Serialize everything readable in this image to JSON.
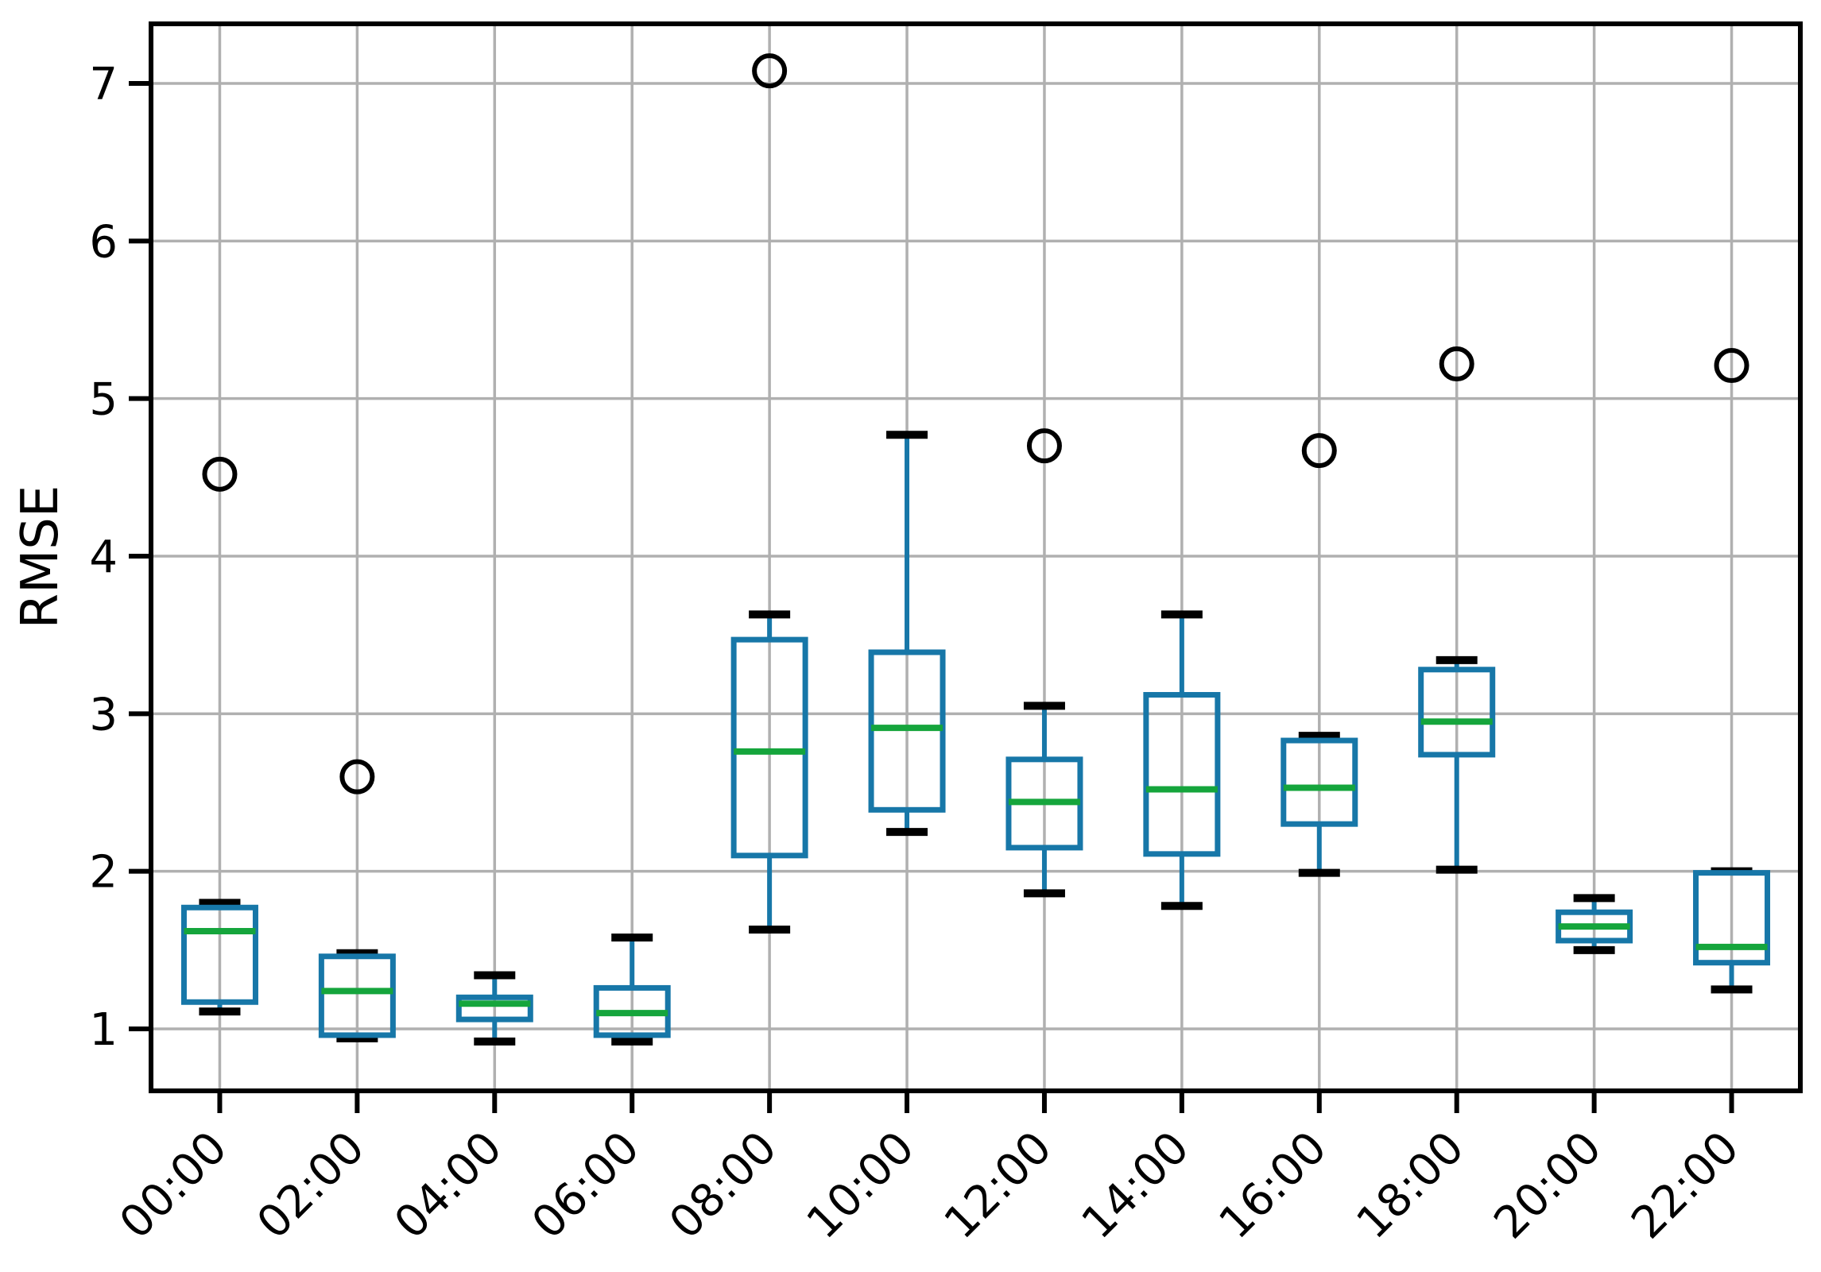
{
  "chart_data": {
    "type": "box",
    "title": "",
    "ylabel": "RMSE",
    "xlabel": "",
    "grid": true,
    "legend": "none",
    "ylim": [
      0.61,
      7.37
    ],
    "yticks": [
      1,
      2,
      3,
      4,
      5,
      6,
      7
    ],
    "categories": [
      "00:00",
      "02:00",
      "04:00",
      "06:00",
      "08:00",
      "10:00",
      "12:00",
      "14:00",
      "16:00",
      "18:00",
      "20:00",
      "22:00"
    ],
    "series": [
      {
        "label": "00:00",
        "whislo": 1.11,
        "q1": 1.17,
        "med": 1.62,
        "q3": 1.77,
        "whishi": 1.8,
        "fliers": [
          4.52
        ]
      },
      {
        "label": "02:00",
        "whislo": 0.94,
        "q1": 0.96,
        "med": 1.24,
        "q3": 1.46,
        "whishi": 1.48,
        "fliers": [
          2.6
        ]
      },
      {
        "label": "04:00",
        "whislo": 0.92,
        "q1": 1.06,
        "med": 1.16,
        "q3": 1.2,
        "whishi": 1.34,
        "fliers": []
      },
      {
        "label": "06:00",
        "whislo": 0.92,
        "q1": 0.96,
        "med": 1.1,
        "q3": 1.26,
        "whishi": 1.58,
        "fliers": []
      },
      {
        "label": "08:00",
        "whislo": 1.63,
        "q1": 2.1,
        "med": 2.76,
        "q3": 3.47,
        "whishi": 3.63,
        "fliers": [
          7.08
        ]
      },
      {
        "label": "10:00",
        "whislo": 2.25,
        "q1": 2.39,
        "med": 2.91,
        "q3": 3.39,
        "whishi": 4.77,
        "fliers": []
      },
      {
        "label": "12:00",
        "whislo": 1.86,
        "q1": 2.15,
        "med": 2.44,
        "q3": 2.71,
        "whishi": 3.05,
        "fliers": [
          4.7
        ]
      },
      {
        "label": "14:00",
        "whislo": 1.78,
        "q1": 2.11,
        "med": 2.52,
        "q3": 3.12,
        "whishi": 3.63,
        "fliers": []
      },
      {
        "label": "16:00",
        "whislo": 1.99,
        "q1": 2.3,
        "med": 2.53,
        "q3": 2.83,
        "whishi": 2.86,
        "fliers": [
          4.67
        ]
      },
      {
        "label": "18:00",
        "whislo": 2.01,
        "q1": 2.74,
        "med": 2.95,
        "q3": 3.28,
        "whishi": 3.34,
        "fliers": [
          5.22
        ]
      },
      {
        "label": "20:00",
        "whislo": 1.5,
        "q1": 1.56,
        "med": 1.65,
        "q3": 1.74,
        "whishi": 1.83,
        "fliers": []
      },
      {
        "label": "22:00",
        "whislo": 1.25,
        "q1": 1.42,
        "med": 1.52,
        "q3": 1.99,
        "whishi": 2.0,
        "fliers": [
          5.21
        ]
      }
    ],
    "colors": {
      "box_edge": "#1777a8",
      "whisker": "#1777a8",
      "median": "#15a53c",
      "cap": "#000000",
      "flier_edge": "#000000",
      "grid": "#b0b0b0",
      "axis": "#000000",
      "background": "#ffffff"
    }
  }
}
